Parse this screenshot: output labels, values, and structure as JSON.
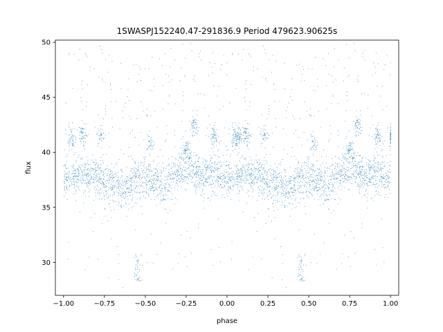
{
  "chart_data": {
    "type": "scatter",
    "title": "1SWASPJ152240.47-291836.9 Period 479623.90625s",
    "xlabel": "phase",
    "ylabel": "flux",
    "xlim": [
      -1.05,
      1.05
    ],
    "ylim": [
      27.0,
      50.2
    ],
    "xticks": [
      -1.0,
      -0.75,
      -0.5,
      -0.25,
      0.0,
      0.25,
      0.5,
      0.75,
      1.0
    ],
    "xtick_labels": [
      "−1.00",
      "−0.75",
      "−0.50",
      "−0.25",
      "0.00",
      "0.25",
      "0.50",
      "0.75",
      "1.00"
    ],
    "yticks": [
      30,
      35,
      40,
      45,
      50
    ],
    "ytick_labels": [
      "30",
      "35",
      "40",
      "45",
      "50"
    ],
    "grid": false,
    "point_color": "#1f77b4",
    "series": [
      {
        "points_per_half": 2200,
        "band": {
          "x": [
            -1.0,
            -0.9,
            -0.8,
            -0.7,
            -0.65,
            -0.6,
            -0.55,
            -0.5,
            -0.45,
            -0.4,
            -0.35,
            -0.3,
            -0.25,
            -0.2,
            -0.15,
            -0.1,
            -0.05,
            0.0
          ],
          "median": [
            37.5,
            38.0,
            37.8,
            37.2,
            36.5,
            36.9,
            37.4,
            37.8,
            37.3,
            37.0,
            37.4,
            38.2,
            38.6,
            38.3,
            38.0,
            38.5,
            38.0,
            37.6
          ]
        },
        "dip": {
          "x_center": -0.545,
          "x_width": 0.012,
          "y_range": [
            28.2,
            30.8
          ]
        },
        "upper_clumps": [
          {
            "x": -0.95,
            "y": 41.3
          },
          {
            "x": -0.88,
            "y": 41.6
          },
          {
            "x": -0.77,
            "y": 41.5
          },
          {
            "x": -0.47,
            "y": 40.8
          },
          {
            "x": -0.25,
            "y": 40.3
          },
          {
            "x": -0.2,
            "y": 42.5
          },
          {
            "x": -0.08,
            "y": 41.5
          },
          {
            "x": 0.07,
            "y": 41.5
          }
        ]
      }
    ]
  }
}
